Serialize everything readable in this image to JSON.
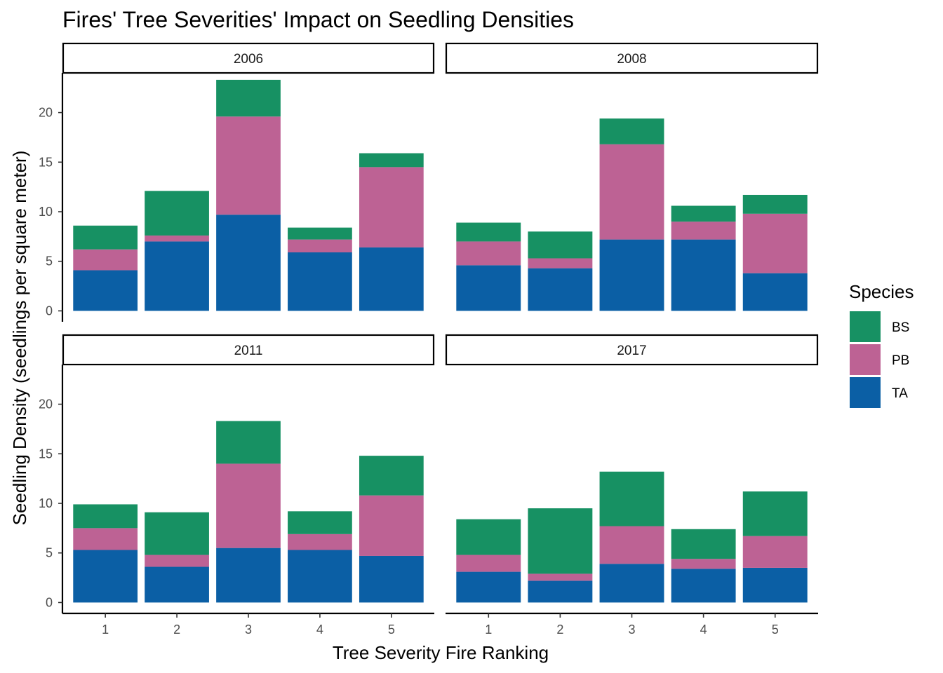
{
  "chart_data": {
    "type": "bar",
    "stacked": true,
    "title": "Fires' Tree Severities' Impact on Seedling Densities",
    "xlabel": "Tree Severity Fire Ranking",
    "ylabel": "Seedling Density (seedlings per square meter)",
    "categories": [
      "1",
      "2",
      "3",
      "4",
      "5"
    ],
    "y_ticks": [
      "0",
      "5",
      "10",
      "15",
      "20"
    ],
    "ylim": [
      -1.1,
      24
    ],
    "legend": {
      "title": "Species",
      "position": "right"
    },
    "colors": {
      "BS": "#179163",
      "PB": "#BD6294",
      "TA": "#0B5FA5"
    },
    "panels": [
      {
        "label": "2006",
        "series": [
          {
            "name": "TA",
            "values": [
              4.1,
              7.0,
              9.7,
              5.9,
              6.4
            ]
          },
          {
            "name": "PB",
            "values": [
              2.1,
              0.6,
              9.9,
              1.3,
              8.1
            ]
          },
          {
            "name": "BS",
            "values": [
              2.4,
              4.5,
              3.7,
              1.2,
              1.4
            ]
          }
        ]
      },
      {
        "label": "2008",
        "series": [
          {
            "name": "TA",
            "values": [
              4.6,
              4.3,
              7.2,
              7.2,
              3.8
            ]
          },
          {
            "name": "PB",
            "values": [
              2.4,
              1.0,
              9.6,
              1.8,
              6.0
            ]
          },
          {
            "name": "BS",
            "values": [
              1.9,
              2.7,
              2.6,
              1.6,
              1.9
            ]
          }
        ]
      },
      {
        "label": "2011",
        "series": [
          {
            "name": "TA",
            "values": [
              5.3,
              3.6,
              5.5,
              5.3,
              4.7
            ]
          },
          {
            "name": "PB",
            "values": [
              2.2,
              1.2,
              8.5,
              1.6,
              6.1
            ]
          },
          {
            "name": "BS",
            "values": [
              2.4,
              4.3,
              4.3,
              2.3,
              4.0
            ]
          }
        ]
      },
      {
        "label": "2017",
        "series": [
          {
            "name": "TA",
            "values": [
              3.1,
              2.2,
              3.9,
              3.4,
              3.5
            ]
          },
          {
            "name": "PB",
            "values": [
              1.7,
              0.7,
              3.8,
              1.0,
              3.2
            ]
          },
          {
            "name": "BS",
            "values": [
              3.6,
              6.6,
              5.5,
              3.0,
              4.5
            ]
          }
        ]
      }
    ]
  }
}
